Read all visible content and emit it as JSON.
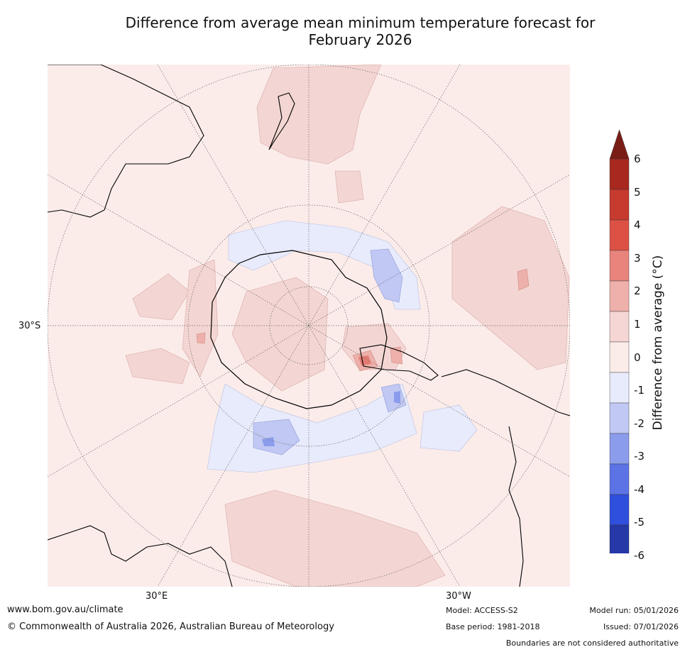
{
  "title": {
    "line1": "Difference from average mean minimum temperature forecast for",
    "line2": "February 2026"
  },
  "axis_labels": {
    "lat_left": "30°S",
    "lon_left": "30°E",
    "lon_right": "30°W"
  },
  "colorbar": {
    "label": "Difference from average (°C)",
    "ticks": [
      "6",
      "5",
      "4",
      "3",
      "2",
      "1",
      "0",
      "-1",
      "-2",
      "-3",
      "-4",
      "-5",
      "-6"
    ],
    "colors": [
      "#7a1d16",
      "#a82820",
      "#c73a2e",
      "#dd5144",
      "#e8847c",
      "#eeb0aa",
      "#f5d6d4",
      "#fbecea",
      "#e8ebfb",
      "#c0c8f3",
      "#8c9cec",
      "#5c73e6",
      "#2f4fdd",
      "#2638a8",
      "#1f2a80"
    ]
  },
  "footer": {
    "website": "www.bom.gov.au/climate",
    "copyright": "© Commonwealth of Australia 2026, Australian Bureau of Meteorology",
    "model": "Model: ACCESS-S2",
    "base_period": "Base period: 1981-2018",
    "model_run": "Model run: 05/01/2026",
    "issued": "Issued: 07/01/2026",
    "disclaimer": "Boundaries are not considered authoritative"
  }
}
